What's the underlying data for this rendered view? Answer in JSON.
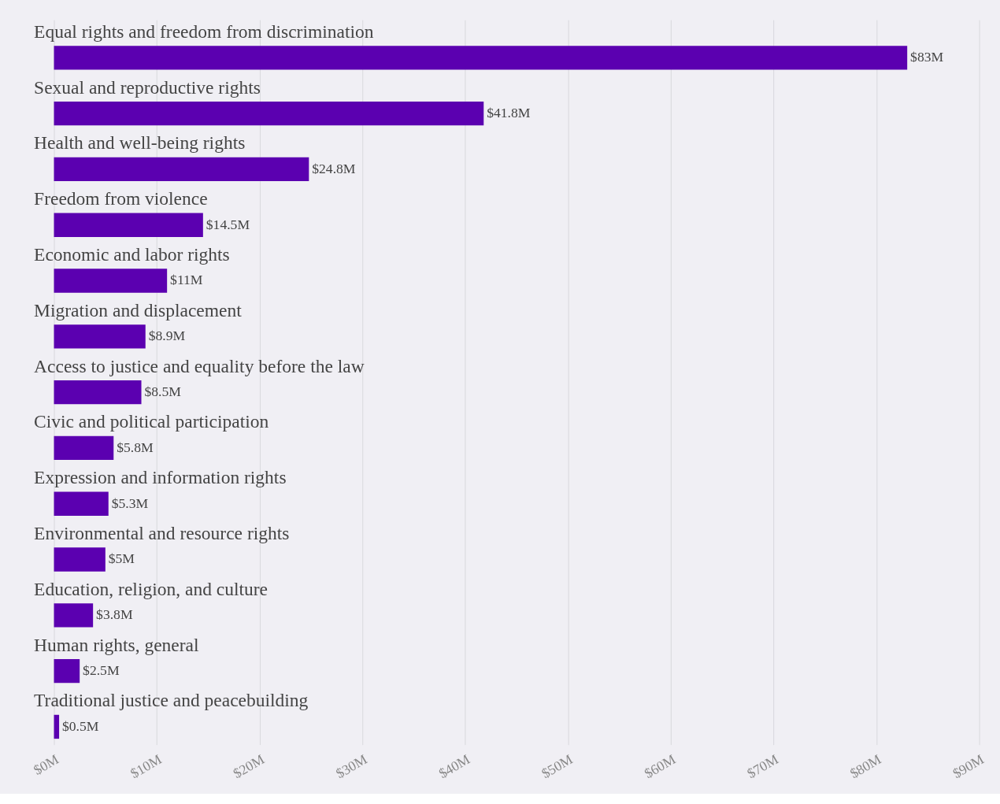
{
  "chart_data": {
    "type": "bar",
    "orientation": "horizontal",
    "categories": [
      "Equal rights and freedom from discrimination",
      "Sexual and reproductive rights",
      "Health and well-being rights",
      "Freedom from violence",
      "Economic and labor rights",
      "Migration and displacement",
      "Access to justice and equality before the law",
      "Civic and political participation",
      "Expression and information rights",
      "Environmental and resource rights",
      "Education, religion, and culture",
      "Human rights, general",
      "Traditional justice and peacebuilding"
    ],
    "values": [
      83,
      41.8,
      24.8,
      14.5,
      11,
      8.9,
      8.5,
      5.8,
      5.3,
      5,
      3.8,
      2.5,
      0.5
    ],
    "value_labels": [
      "$83M",
      "$41.8M",
      "$24.8M",
      "$14.5M",
      "$11M",
      "$8.9M",
      "$8.5M",
      "$5.8M",
      "$5.3M",
      "$5M",
      "$3.8M",
      "$2.5M",
      "$0.5M"
    ],
    "color": "#5b00b0",
    "xlim": [
      0,
      90
    ],
    "xticks": [
      {
        "value": 0,
        "label": "$0M"
      },
      {
        "value": 10,
        "label": "$10M"
      },
      {
        "value": 20,
        "label": "$20M"
      },
      {
        "value": 30,
        "label": "$30M"
      },
      {
        "value": 40,
        "label": "$40M"
      },
      {
        "value": 50,
        "label": "$50M"
      },
      {
        "value": 60,
        "label": "$60M"
      },
      {
        "value": 70,
        "label": "$70M"
      },
      {
        "value": 80,
        "label": "$80M"
      },
      {
        "value": 90,
        "label": "$90M"
      }
    ],
    "grid": "x"
  }
}
